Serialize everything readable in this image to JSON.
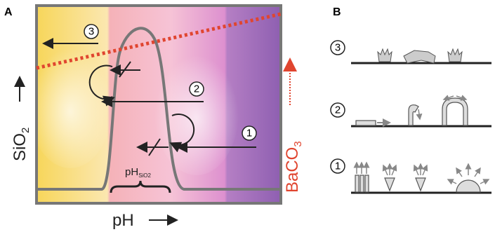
{
  "panel_a": {
    "label": "A",
    "steps": [
      "3",
      "2",
      "1"
    ],
    "y_axis_label": {
      "main": "SiO",
      "sub": "2"
    },
    "x_axis_label": "pH",
    "right_label": {
      "main": "BaCO",
      "sub": "3"
    },
    "range_label": {
      "main": "pH",
      "sub": "SiO2"
    }
  },
  "panel_b": {
    "label": "B",
    "steps": [
      "3",
      "2",
      "1"
    ]
  }
}
